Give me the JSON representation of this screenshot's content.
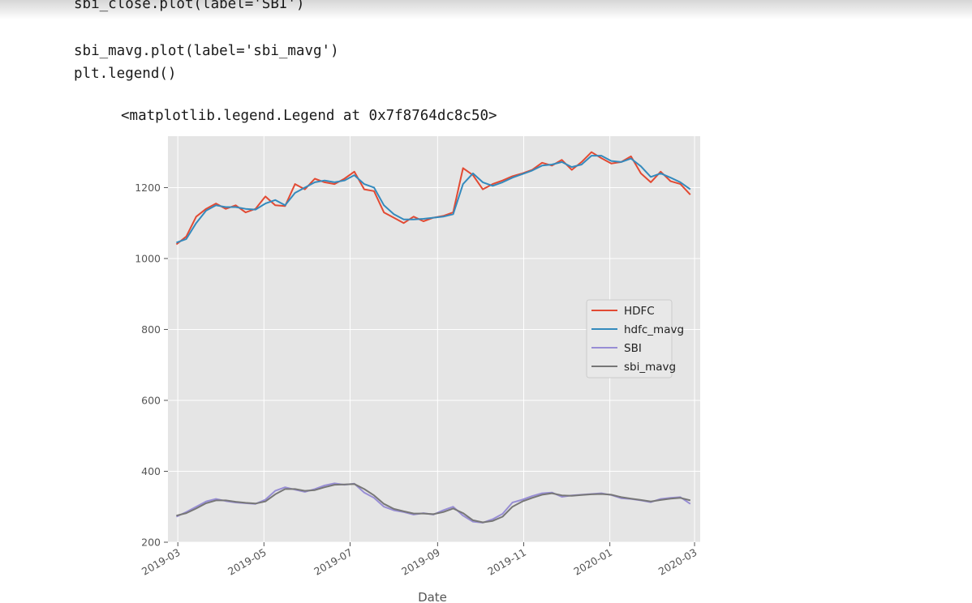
{
  "code_lines": [
    "sbi_close.plot(label='SBI')",
    "sbi_mavg.plot(label='sbi_mavg')",
    "plt.legend()"
  ],
  "output_text": "<matplotlib.legend.Legend at 0x7f8764dc8c50>",
  "chart_data": {
    "type": "line",
    "xlabel": "Date",
    "ylabel": "",
    "title": "",
    "x_ticks": [
      "2019-03",
      "2019-05",
      "2019-07",
      "2019-09",
      "2019-11",
      "2020-01",
      "2020-03"
    ],
    "x_range": [
      "2019-02-22",
      "2020-03-05"
    ],
    "y_ticks": [
      200,
      400,
      600,
      800,
      1000,
      1200
    ],
    "ylim": [
      200,
      1345
    ],
    "grid": true,
    "legend_position": "center-right",
    "x": [
      "2019-02-28",
      "2019-03-07",
      "2019-03-14",
      "2019-03-21",
      "2019-03-28",
      "2019-04-04",
      "2019-04-11",
      "2019-04-18",
      "2019-04-25",
      "2019-05-02",
      "2019-05-09",
      "2019-05-16",
      "2019-05-23",
      "2019-05-30",
      "2019-06-06",
      "2019-06-13",
      "2019-06-20",
      "2019-06-27",
      "2019-07-04",
      "2019-07-11",
      "2019-07-18",
      "2019-07-25",
      "2019-08-01",
      "2019-08-08",
      "2019-08-15",
      "2019-08-22",
      "2019-08-29",
      "2019-09-05",
      "2019-09-12",
      "2019-09-19",
      "2019-09-26",
      "2019-10-03",
      "2019-10-10",
      "2019-10-17",
      "2019-10-24",
      "2019-10-31",
      "2019-11-07",
      "2019-11-14",
      "2019-11-21",
      "2019-11-28",
      "2019-12-05",
      "2019-12-12",
      "2019-12-19",
      "2019-12-26",
      "2020-01-02",
      "2020-01-09",
      "2020-01-16",
      "2020-01-23",
      "2020-01-30",
      "2020-02-06",
      "2020-02-13",
      "2020-02-20",
      "2020-02-27"
    ],
    "series": [
      {
        "name": "HDFC",
        "color": "#e24a33",
        "values": [
          1040,
          1062,
          1118,
          1140,
          1155,
          1140,
          1150,
          1130,
          1140,
          1175,
          1150,
          1148,
          1210,
          1195,
          1225,
          1215,
          1210,
          1225,
          1245,
          1195,
          1190,
          1130,
          1115,
          1100,
          1118,
          1105,
          1115,
          1120,
          1130,
          1255,
          1235,
          1195,
          1210,
          1220,
          1232,
          1240,
          1250,
          1270,
          1262,
          1278,
          1250,
          1272,
          1300,
          1283,
          1268,
          1272,
          1288,
          1240,
          1215,
          1245,
          1218,
          1210,
          1180
        ]
      },
      {
        "name": "hdfc_mavg",
        "color": "#348abd",
        "values": [
          1045,
          1055,
          1100,
          1135,
          1150,
          1145,
          1145,
          1140,
          1138,
          1155,
          1165,
          1150,
          1185,
          1200,
          1215,
          1220,
          1215,
          1220,
          1235,
          1210,
          1200,
          1150,
          1125,
          1110,
          1110,
          1112,
          1115,
          1118,
          1125,
          1210,
          1240,
          1215,
          1205,
          1215,
          1228,
          1238,
          1248,
          1262,
          1265,
          1272,
          1258,
          1265,
          1290,
          1290,
          1275,
          1272,
          1282,
          1260,
          1230,
          1240,
          1228,
          1215,
          1195
        ]
      },
      {
        "name": "SBI",
        "color": "#988ed5",
        "values": [
          272,
          285,
          300,
          315,
          322,
          316,
          312,
          310,
          308,
          320,
          345,
          355,
          348,
          342,
          350,
          360,
          366,
          362,
          365,
          340,
          325,
          300,
          290,
          285,
          278,
          282,
          278,
          290,
          300,
          275,
          258,
          255,
          265,
          280,
          312,
          320,
          330,
          338,
          340,
          328,
          332,
          334,
          336,
          338,
          333,
          324,
          322,
          318,
          313,
          322,
          325,
          327,
          308
        ]
      },
      {
        "name": "sbi_mavg",
        "color": "#777777",
        "values": [
          275,
          282,
          295,
          310,
          318,
          318,
          314,
          311,
          309,
          315,
          335,
          350,
          350,
          345,
          347,
          355,
          362,
          363,
          364,
          350,
          332,
          308,
          294,
          287,
          281,
          281,
          279,
          285,
          295,
          282,
          262,
          256,
          260,
          272,
          300,
          315,
          325,
          334,
          338,
          332,
          331,
          333,
          335,
          336,
          334,
          327,
          323,
          319,
          315,
          319,
          323,
          325,
          318
        ]
      }
    ]
  }
}
